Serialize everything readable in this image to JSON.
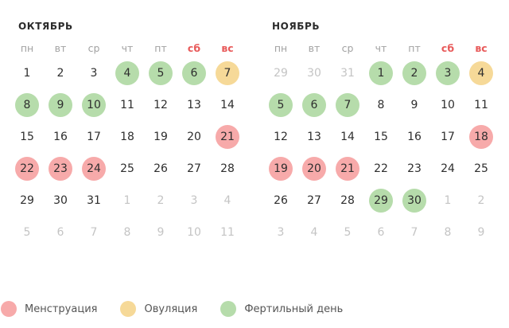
{
  "colors": {
    "menstruation": "#f7aaaa",
    "ovulation": "#f6d998",
    "fertile": "#b6dcab",
    "weekend_header": "#e85a5a",
    "other_month_day": "#c4c4c4"
  },
  "weekdays": [
    "пн",
    "вт",
    "ср",
    "чт",
    "пт",
    "сб",
    "вс"
  ],
  "months": [
    {
      "title": "ОКТЯБРЬ",
      "weeks": [
        [
          {
            "d": "1"
          },
          {
            "d": "2"
          },
          {
            "d": "3"
          },
          {
            "d": "4",
            "t": "fertile"
          },
          {
            "d": "5",
            "t": "fertile"
          },
          {
            "d": "6",
            "t": "fertile"
          },
          {
            "d": "7",
            "t": "ovulation"
          }
        ],
        [
          {
            "d": "8",
            "t": "fertile"
          },
          {
            "d": "9",
            "t": "fertile"
          },
          {
            "d": "10",
            "t": "fertile"
          },
          {
            "d": "11"
          },
          {
            "d": "12"
          },
          {
            "d": "13"
          },
          {
            "d": "14"
          }
        ],
        [
          {
            "d": "15"
          },
          {
            "d": "16"
          },
          {
            "d": "17"
          },
          {
            "d": "18"
          },
          {
            "d": "19"
          },
          {
            "d": "20"
          },
          {
            "d": "21",
            "t": "menstruation"
          }
        ],
        [
          {
            "d": "22",
            "t": "menstruation"
          },
          {
            "d": "23",
            "t": "menstruation"
          },
          {
            "d": "24",
            "t": "menstruation"
          },
          {
            "d": "25"
          },
          {
            "d": "26"
          },
          {
            "d": "27"
          },
          {
            "d": "28"
          }
        ],
        [
          {
            "d": "29"
          },
          {
            "d": "30"
          },
          {
            "d": "31"
          },
          {
            "d": "1",
            "o": true
          },
          {
            "d": "2",
            "o": true
          },
          {
            "d": "3",
            "o": true
          },
          {
            "d": "4",
            "o": true
          }
        ],
        [
          {
            "d": "5",
            "o": true
          },
          {
            "d": "6",
            "o": true
          },
          {
            "d": "7",
            "o": true
          },
          {
            "d": "8",
            "o": true
          },
          {
            "d": "9",
            "o": true
          },
          {
            "d": "10",
            "o": true
          },
          {
            "d": "11",
            "o": true
          }
        ]
      ]
    },
    {
      "title": "НОЯБРЬ",
      "weeks": [
        [
          {
            "d": "29",
            "o": true
          },
          {
            "d": "30",
            "o": true
          },
          {
            "d": "31",
            "o": true
          },
          {
            "d": "1",
            "t": "fertile"
          },
          {
            "d": "2",
            "t": "fertile"
          },
          {
            "d": "3",
            "t": "fertile"
          },
          {
            "d": "4",
            "t": "ovulation"
          }
        ],
        [
          {
            "d": "5",
            "t": "fertile"
          },
          {
            "d": "6",
            "t": "fertile"
          },
          {
            "d": "7",
            "t": "fertile"
          },
          {
            "d": "8"
          },
          {
            "d": "9"
          },
          {
            "d": "10"
          },
          {
            "d": "11"
          }
        ],
        [
          {
            "d": "12"
          },
          {
            "d": "13"
          },
          {
            "d": "14"
          },
          {
            "d": "15"
          },
          {
            "d": "16"
          },
          {
            "d": "17"
          },
          {
            "d": "18",
            "t": "menstruation"
          }
        ],
        [
          {
            "d": "19",
            "t": "menstruation"
          },
          {
            "d": "20",
            "t": "menstruation"
          },
          {
            "d": "21",
            "t": "menstruation"
          },
          {
            "d": "22"
          },
          {
            "d": "23"
          },
          {
            "d": "24"
          },
          {
            "d": "25"
          }
        ],
        [
          {
            "d": "26"
          },
          {
            "d": "27"
          },
          {
            "d": "28"
          },
          {
            "d": "29",
            "t": "fertile"
          },
          {
            "d": "30",
            "t": "fertile"
          },
          {
            "d": "1",
            "o": true
          },
          {
            "d": "2",
            "o": true
          }
        ],
        [
          {
            "d": "3",
            "o": true
          },
          {
            "d": "4",
            "o": true
          },
          {
            "d": "5",
            "o": true
          },
          {
            "d": "6",
            "o": true
          },
          {
            "d": "7",
            "o": true
          },
          {
            "d": "8",
            "o": true
          },
          {
            "d": "9",
            "o": true
          }
        ]
      ]
    }
  ],
  "legend": [
    {
      "type": "menstruation",
      "label": "Менструация"
    },
    {
      "type": "ovulation",
      "label": "Овуляция"
    },
    {
      "type": "fertile",
      "label": "Фертильный день"
    }
  ]
}
